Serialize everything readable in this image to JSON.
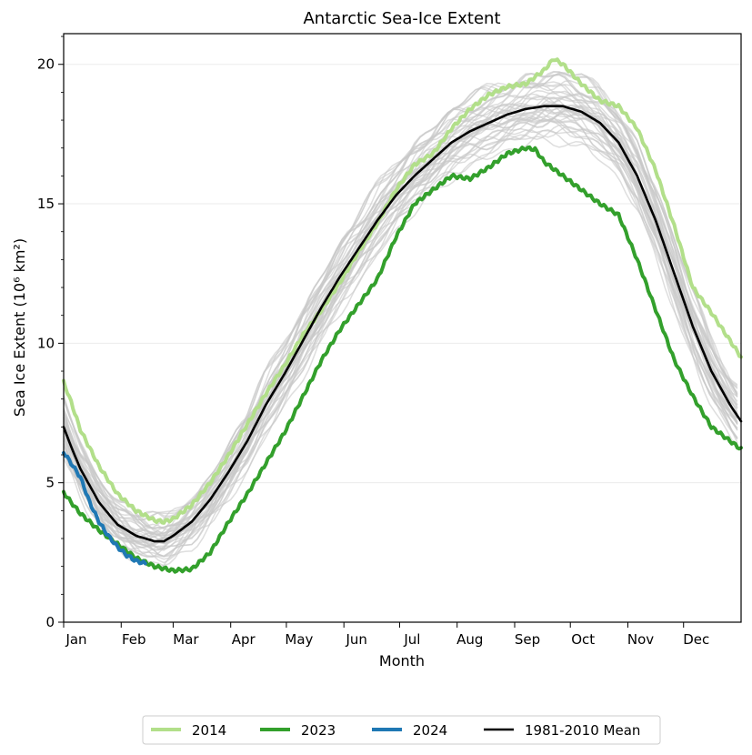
{
  "chart_data": {
    "type": "line",
    "title": "Antarctic Sea-Ice Extent",
    "xlabel": "Month",
    "ylabel": "Sea Ice Extent (10⁶ km²)",
    "x_ticks": [
      "Jan",
      "Feb",
      "Mar",
      "Apr",
      "May",
      "Jun",
      "Jul",
      "Aug",
      "Sep",
      "Oct",
      "Nov",
      "Dec"
    ],
    "y_ticks": [
      "0",
      "5",
      "10",
      "15",
      "20"
    ],
    "xlim": [
      1,
      366
    ],
    "ylim": [
      0,
      21.1
    ],
    "grid": "y-major",
    "legend_position": "bottom-center (outside)",
    "background_series_color": "#c8c8c8",
    "series": [
      {
        "name": "2014",
        "color": "#b2df8a",
        "day": [
          1,
          5,
          10,
          20,
          30,
          40,
          50,
          55,
          60,
          70,
          80,
          90,
          100,
          110,
          120,
          130,
          140,
          150,
          160,
          170,
          180,
          190,
          200,
          210,
          220,
          230,
          240,
          250,
          260,
          265,
          270,
          280,
          290,
          300,
          310,
          320,
          330,
          340,
          350,
          366
        ],
        "value": [
          8.6,
          7.9,
          6.9,
          5.6,
          4.6,
          4.0,
          3.65,
          3.6,
          3.7,
          4.2,
          5.0,
          6.0,
          7.1,
          8.2,
          9.2,
          10.3,
          11.2,
          12.2,
          13.3,
          14.3,
          15.5,
          16.4,
          16.8,
          17.7,
          18.4,
          18.9,
          19.2,
          19.3,
          19.8,
          20.2,
          20.0,
          19.3,
          18.7,
          18.5,
          17.7,
          16.2,
          14.2,
          12.0,
          11.1,
          9.5
        ]
      },
      {
        "name": "2023",
        "color": "#33a02c",
        "day": [
          1,
          5,
          10,
          20,
          30,
          40,
          50,
          60,
          70,
          80,
          90,
          100,
          110,
          120,
          130,
          140,
          150,
          160,
          170,
          180,
          190,
          200,
          210,
          220,
          230,
          240,
          250,
          255,
          260,
          270,
          280,
          290,
          300,
          310,
          320,
          330,
          340,
          350,
          360,
          366
        ],
        "value": [
          4.65,
          4.3,
          3.9,
          3.3,
          2.8,
          2.3,
          2.0,
          1.85,
          1.9,
          2.5,
          3.6,
          4.6,
          5.7,
          6.8,
          8.1,
          9.4,
          10.5,
          11.4,
          12.3,
          13.8,
          15.0,
          15.5,
          16.0,
          15.9,
          16.3,
          16.8,
          17.0,
          16.95,
          16.5,
          16.0,
          15.5,
          15.0,
          14.6,
          13.0,
          11.2,
          9.4,
          8.1,
          7.0,
          6.5,
          6.2
        ]
      },
      {
        "name": "2024",
        "color": "#1f78b4",
        "day": [
          1,
          5,
          10,
          15,
          20,
          25,
          30,
          35,
          40,
          45,
          45.5
        ],
        "value": [
          6.1,
          5.7,
          5.2,
          4.3,
          3.6,
          3.1,
          2.7,
          2.4,
          2.2,
          2.1,
          2.05
        ]
      },
      {
        "name": "1981-2010 Mean",
        "color": "#000000",
        "day": [
          1,
          5,
          10,
          20,
          30,
          40,
          50,
          55,
          60,
          70,
          80,
          90,
          100,
          110,
          120,
          130,
          140,
          150,
          160,
          170,
          180,
          190,
          200,
          210,
          220,
          230,
          240,
          250,
          260,
          270,
          280,
          290,
          300,
          310,
          320,
          330,
          340,
          350,
          360,
          366
        ],
        "value": [
          7.0,
          6.3,
          5.5,
          4.3,
          3.5,
          3.1,
          2.9,
          2.9,
          3.1,
          3.6,
          4.4,
          5.4,
          6.5,
          7.8,
          8.9,
          10.1,
          11.3,
          12.4,
          13.4,
          14.4,
          15.3,
          16.0,
          16.6,
          17.2,
          17.6,
          17.9,
          18.2,
          18.4,
          18.5,
          18.5,
          18.3,
          17.9,
          17.2,
          16.0,
          14.4,
          12.5,
          10.6,
          9.0,
          7.8,
          7.2
        ]
      }
    ]
  }
}
